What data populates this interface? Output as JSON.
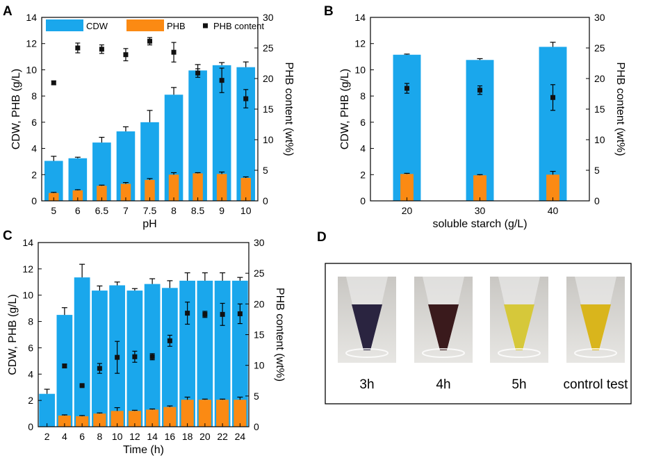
{
  "colors": {
    "cdw": "#1aa7ec",
    "phb": "#fb8a13",
    "marker": "#111111",
    "axis": "#000000"
  },
  "chart_data": [
    {
      "panel": "A",
      "type": "bar",
      "xlabel": "pH",
      "ylabel": "CDW, PHB (g/L)",
      "y2label": "PHB content (wt%)",
      "ylim": [
        0,
        14
      ],
      "y2lim": [
        0,
        30
      ],
      "yticks": [
        "0",
        "2",
        "4",
        "6",
        "8",
        "10",
        "12",
        "14"
      ],
      "y2ticks": [
        "0",
        "5",
        "10",
        "15",
        "20",
        "25",
        "30"
      ],
      "categories": [
        "5",
        "6",
        "6.5",
        "7",
        "7.5",
        "8",
        "8.5",
        "9",
        "10"
      ],
      "legend": {
        "position": "top",
        "entries": [
          "CDW",
          "PHB",
          "PHB content"
        ]
      },
      "series": [
        {
          "name": "CDW",
          "axis": "left",
          "values": [
            3.05,
            3.25,
            4.45,
            5.3,
            6.0,
            8.1,
            9.95,
            10.35,
            10.2
          ],
          "errors": [
            0.35,
            0.08,
            0.4,
            0.35,
            0.9,
            0.55,
            0.45,
            0.2,
            0.4
          ]
        },
        {
          "name": "PHB",
          "axis": "left",
          "values": [
            0.6,
            0.8,
            1.15,
            1.3,
            1.6,
            2.0,
            2.1,
            2.05,
            1.75
          ],
          "errors": [
            0.05,
            0.05,
            0.05,
            0.1,
            0.1,
            0.15,
            0.05,
            0.15,
            0.08
          ]
        },
        {
          "name": "PHB content",
          "axis": "right",
          "type": "scatter",
          "values": [
            19.3,
            25.0,
            24.8,
            23.9,
            26.1,
            24.3,
            20.9,
            19.7,
            16.7
          ],
          "errors": [
            0.3,
            0.8,
            0.7,
            1.0,
            0.6,
            1.6,
            0.7,
            2.0,
            1.5
          ]
        }
      ]
    },
    {
      "panel": "B",
      "type": "bar",
      "xlabel": "soluble starch (g/L)",
      "ylabel": "CDW, PHB (g/L)",
      "y2label": "PHB content (wt%)",
      "ylim": [
        0,
        14
      ],
      "y2lim": [
        0,
        30
      ],
      "yticks": [
        "0",
        "2",
        "4",
        "6",
        "8",
        "10",
        "12",
        "14"
      ],
      "y2ticks": [
        "0",
        "5",
        "10",
        "15",
        "20",
        "25",
        "30"
      ],
      "categories": [
        "20",
        "30",
        "40"
      ],
      "series": [
        {
          "name": "CDW",
          "axis": "left",
          "values": [
            11.15,
            10.75,
            11.75
          ],
          "errors": [
            0.05,
            0.1,
            0.35
          ]
        },
        {
          "name": "PHB",
          "axis": "left",
          "values": [
            2.05,
            1.95,
            2.0
          ],
          "errors": [
            0.05,
            0.05,
            0.25
          ]
        },
        {
          "name": "PHB content",
          "axis": "right",
          "type": "scatter",
          "values": [
            18.4,
            18.1,
            16.9
          ],
          "errors": [
            0.8,
            0.7,
            2.1
          ]
        }
      ]
    },
    {
      "panel": "C",
      "type": "bar",
      "xlabel": "Time (h)",
      "ylabel": "CDW, PHB (g/L)",
      "y2label": "PHB content (wt%)",
      "ylim": [
        0,
        14
      ],
      "y2lim": [
        0,
        30
      ],
      "yticks": [
        "0",
        "2",
        "4",
        "6",
        "8",
        "10",
        "12",
        "14"
      ],
      "y2ticks": [
        "0",
        "5",
        "10",
        "15",
        "20",
        "25",
        "30"
      ],
      "categories": [
        "2",
        "4",
        "6",
        "8",
        "10",
        "12",
        "14",
        "16",
        "18",
        "20",
        "22",
        "24"
      ],
      "series": [
        {
          "name": "CDW",
          "axis": "left",
          "values": [
            2.5,
            8.5,
            11.35,
            10.35,
            10.75,
            10.35,
            10.85,
            10.55,
            11.1,
            11.1,
            11.1,
            11.1
          ],
          "errors": [
            0.35,
            0.55,
            1.0,
            0.35,
            0.25,
            0.15,
            0.4,
            0.55,
            0.6,
            0.6,
            0.6,
            0.25
          ]
        },
        {
          "name": "PHB",
          "axis": "left",
          "values": [
            0,
            0.85,
            0.8,
            1.0,
            1.2,
            1.2,
            1.3,
            1.5,
            2.05,
            2.05,
            2.05,
            2.05
          ],
          "errors": [
            0,
            0.05,
            0.05,
            0.05,
            0.25,
            0.05,
            0.05,
            0.08,
            0.2,
            0.05,
            0.05,
            0.2
          ]
        },
        {
          "name": "PHB content",
          "axis": "right",
          "type": "scatter",
          "values": [
            null,
            9.9,
            6.7,
            9.5,
            11.3,
            11.4,
            11.4,
            14.0,
            18.5,
            18.3,
            18.3,
            18.4
          ],
          "errors": [
            0,
            0.3,
            0.1,
            0.8,
            2.6,
            0.9,
            0.5,
            0.9,
            1.8,
            0.5,
            1.8,
            1.6
          ]
        }
      ]
    }
  ],
  "panel_d": {
    "letter": "D",
    "photos": [
      {
        "label": "3h",
        "liquid": "#2a2440"
      },
      {
        "label": "4h",
        "liquid": "#3a1a1c"
      },
      {
        "label": "5h",
        "liquid": "#d6c83a"
      },
      {
        "label": "control test",
        "liquid": "#d9b51c"
      }
    ]
  }
}
